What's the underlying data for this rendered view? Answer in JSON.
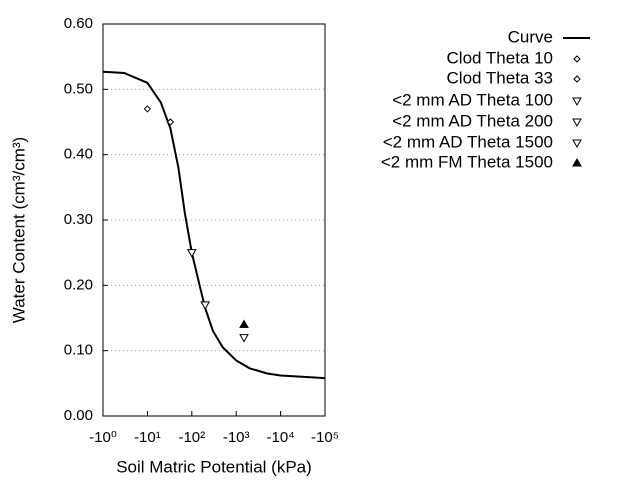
{
  "chart_data": {
    "type": "scatter",
    "xlabel": "Soil Matric Potential (kPa)",
    "ylabel": "Water Content (cm³/cm³)",
    "xscale": "log",
    "grid": true,
    "legend": "right",
    "xlim": [
      -1,
      -100000
    ],
    "ylim": [
      0,
      0.6
    ],
    "xticks": [
      {
        "value": -1,
        "label": "-10⁰"
      },
      {
        "value": -10,
        "label": "-10¹"
      },
      {
        "value": -100,
        "label": "-10²"
      },
      {
        "value": -1000,
        "label": "-10³"
      },
      {
        "value": -10000,
        "label": "-10⁴"
      },
      {
        "value": -100000,
        "label": "-10⁵"
      }
    ],
    "yticks": [
      {
        "value": 0,
        "label": "0.00"
      },
      {
        "value": 0.1,
        "label": "0.10"
      },
      {
        "value": 0.2,
        "label": "0.20"
      },
      {
        "value": 0.3,
        "label": "0.30"
      },
      {
        "value": 0.4,
        "label": "0.40"
      },
      {
        "value": 0.5,
        "label": "0.50"
      },
      {
        "value": 0.6,
        "label": "0.60"
      }
    ],
    "series": [
      {
        "name": "Curve",
        "color": "#000000",
        "marker": "line",
        "x": [
          -1,
          -3,
          -10,
          -20,
          -33,
          -50,
          -70,
          -100,
          -150,
          -200,
          -300,
          -500,
          -1000,
          -2000,
          -5000,
          -10000,
          -30000,
          -100000
        ],
        "values": [
          0.527,
          0.525,
          0.51,
          0.48,
          0.44,
          0.38,
          0.31,
          0.25,
          0.2,
          0.165,
          0.13,
          0.105,
          0.085,
          0.073,
          0.065,
          0.062,
          0.06,
          0.058
        ]
      },
      {
        "name": "Clod Theta 10",
        "color": "#000000",
        "marker": "diamond",
        "x": [
          -10
        ],
        "values": [
          0.47
        ]
      },
      {
        "name": "Clod Theta 33",
        "color": "#000000",
        "marker": "diamond",
        "x": [
          -33
        ],
        "values": [
          0.45
        ]
      },
      {
        "name": "<2 mm AD Theta 100",
        "color": "#000000",
        "marker": "triangle-down",
        "x": [
          -100
        ],
        "values": [
          0.25
        ]
      },
      {
        "name": "<2 mm AD Theta 200",
        "color": "#000000",
        "marker": "triangle-down",
        "x": [
          -200
        ],
        "values": [
          0.17
        ]
      },
      {
        "name": "<2 mm AD Theta 1500",
        "color": "#000000",
        "marker": "triangle-down",
        "x": [
          -1500
        ],
        "values": [
          0.12
        ]
      },
      {
        "name": "<2 mm FM Theta 1500",
        "color": "#000000",
        "marker": "triangle-up-filled",
        "x": [
          -1500
        ],
        "values": [
          0.14
        ]
      }
    ]
  }
}
